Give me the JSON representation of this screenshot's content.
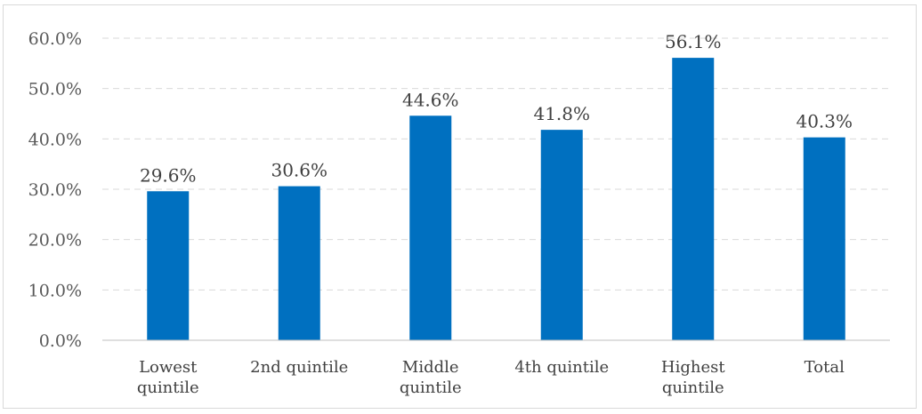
{
  "chart_data": {
    "type": "bar",
    "title": "",
    "xlabel": "",
    "ylabel": "",
    "categories": [
      [
        "Lowest",
        "quintile"
      ],
      [
        "2nd quintile"
      ],
      [
        "Middle",
        "quintile"
      ],
      [
        "4th quintile"
      ],
      [
        "Highest",
        "quintile"
      ],
      [
        "Total"
      ]
    ],
    "values": [
      29.6,
      30.6,
      44.6,
      41.8,
      56.1,
      40.3
    ],
    "data_labels": [
      "29.6%",
      "30.6%",
      "44.6%",
      "41.8%",
      "56.1%",
      "40.3%"
    ],
    "ylim": [
      0,
      60
    ],
    "yticks": [
      0,
      10,
      20,
      30,
      40,
      50,
      60
    ],
    "ytick_labels": [
      "0.0%",
      "10.0%",
      "20.0%",
      "30.0%",
      "40.0%",
      "50.0%",
      "60.0%"
    ],
    "grid": true,
    "legend": "none",
    "bar_color": "#0070c0"
  }
}
